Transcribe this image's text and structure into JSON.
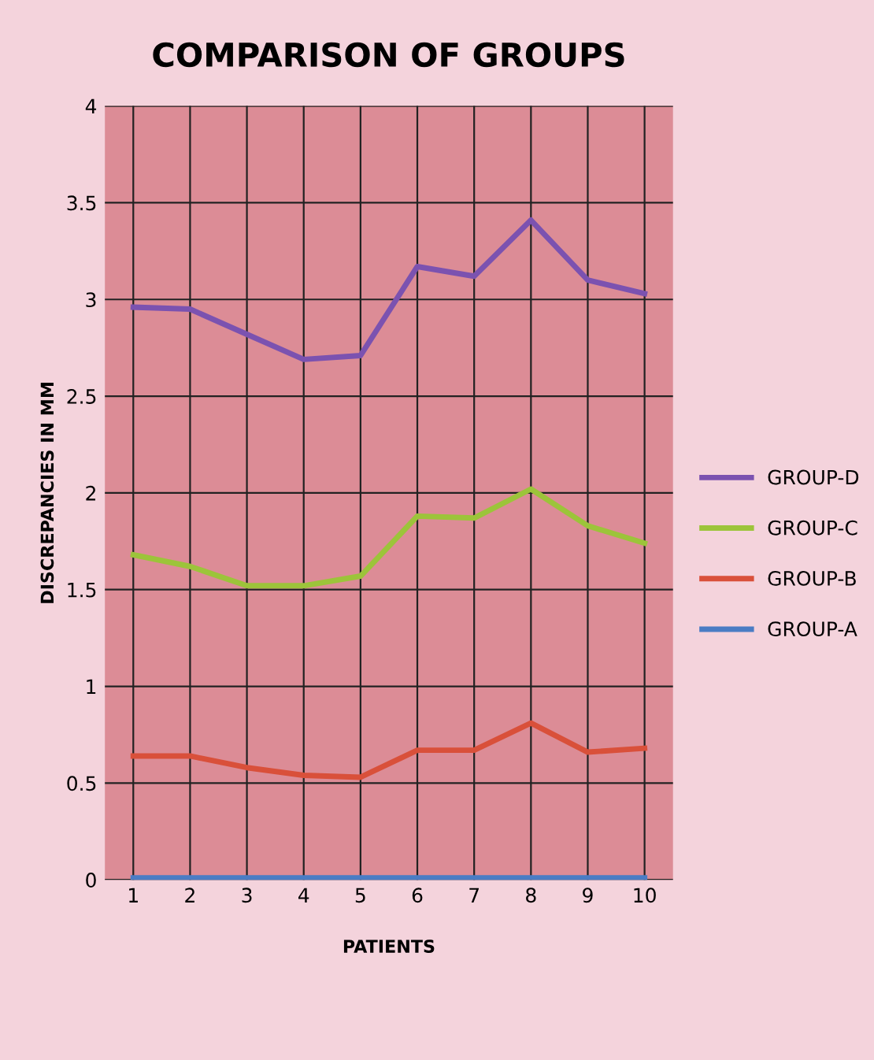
{
  "chart_data": {
    "type": "line",
    "title": "COMPARISON OF GROUPS",
    "xlabel": "PATIENTS",
    "ylabel": "DISCREPANCIES IN MM",
    "categories": [
      "1",
      "2",
      "3",
      "4",
      "5",
      "6",
      "7",
      "8",
      "9",
      "10"
    ],
    "series": [
      {
        "name": "GROUP-D",
        "color": "#7b52b0",
        "values": [
          2.96,
          2.95,
          2.82,
          2.69,
          2.71,
          3.17,
          3.12,
          3.41,
          3.1,
          3.03
        ]
      },
      {
        "name": "GROUP-C",
        "color": "#9cc43a",
        "values": [
          1.68,
          1.62,
          1.52,
          1.52,
          1.57,
          1.88,
          1.87,
          2.02,
          1.83,
          1.74
        ]
      },
      {
        "name": "GROUP-B",
        "color": "#d9503a",
        "values": [
          0.64,
          0.64,
          0.58,
          0.54,
          0.53,
          0.67,
          0.67,
          0.81,
          0.66,
          0.68
        ]
      },
      {
        "name": "GROUP-A",
        "color": "#4a7cc4",
        "values": [
          0.01,
          0.01,
          0.01,
          0.01,
          0.01,
          0.01,
          0.01,
          0.01,
          0.01,
          0.01
        ]
      }
    ],
    "ylim": [
      0,
      4
    ],
    "yticks": [
      0,
      0.5,
      1,
      1.5,
      2,
      2.5,
      3,
      3.5,
      4
    ],
    "grid": true,
    "legend": "right",
    "marker": "none",
    "line_style": "solid"
  }
}
